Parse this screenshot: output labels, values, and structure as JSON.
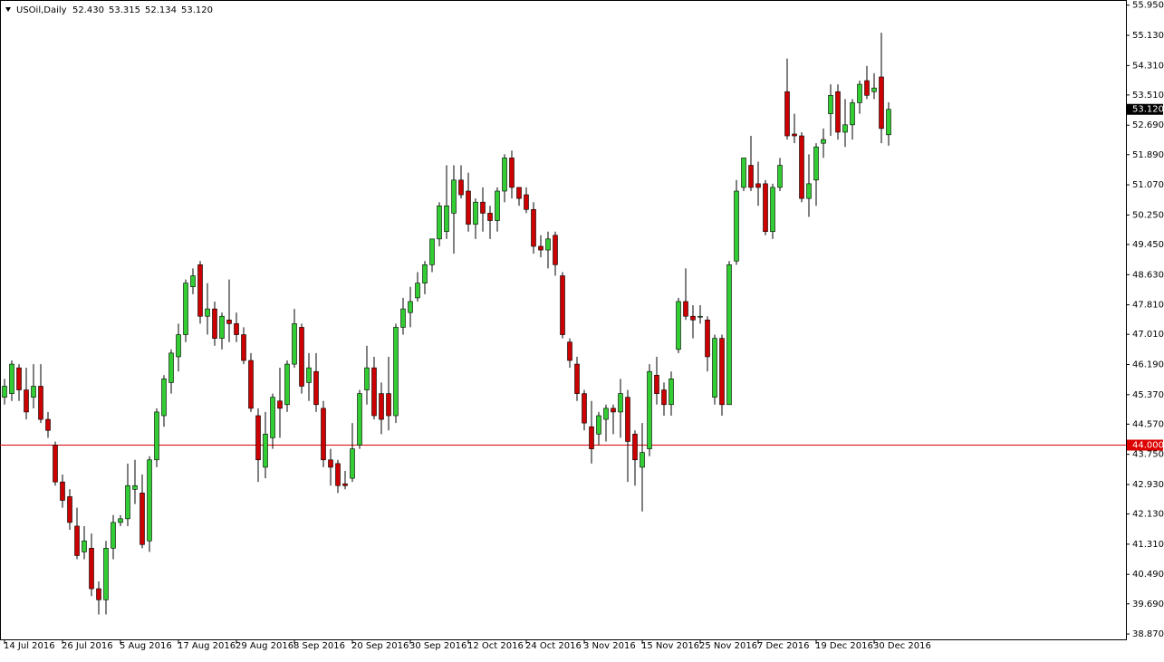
{
  "chart_data": {
    "type": "candlestick",
    "symbol": "USOil,Daily",
    "last_ohlc_labels": [
      "52.430",
      "53.315",
      "52.134",
      "53.120"
    ],
    "categories": [
      "14 Jul 2016",
      null,
      null,
      null,
      null,
      null,
      null,
      null,
      "26 Jul 2016",
      null,
      null,
      null,
      null,
      null,
      null,
      null,
      "5 Aug 2016",
      null,
      null,
      null,
      null,
      null,
      null,
      null,
      "17 Aug 2016",
      null,
      null,
      null,
      null,
      null,
      null,
      null,
      "29 Aug 2016",
      null,
      null,
      null,
      null,
      null,
      null,
      null,
      "8 Sep 2016",
      null,
      null,
      null,
      null,
      null,
      null,
      null,
      "20 Sep 2016",
      null,
      null,
      null,
      null,
      null,
      null,
      null,
      "30 Sep 2016",
      null,
      null,
      null,
      null,
      null,
      null,
      null,
      "12 Oct 2016",
      null,
      null,
      null,
      null,
      null,
      null,
      null,
      "24 Oct 2016",
      null,
      null,
      null,
      null,
      null,
      null,
      null,
      "3 Nov 2016",
      null,
      null,
      null,
      null,
      null,
      null,
      null,
      "15 Nov 2016",
      null,
      null,
      null,
      null,
      null,
      null,
      null,
      "25 Nov 2016",
      null,
      null,
      null,
      null,
      null,
      null,
      null,
      "7 Dec 2016",
      null,
      null,
      null,
      null,
      null,
      null,
      null,
      "19 Dec 2016",
      null,
      null,
      null,
      null,
      null,
      null,
      null,
      "30 Dec 2016",
      null,
      null
    ],
    "open": [
      45.3,
      45.4,
      46.1,
      45.5,
      45.3,
      45.6,
      44.7,
      44.0,
      43.0,
      42.6,
      41.8,
      41.1,
      41.2,
      40.1,
      39.8,
      41.2,
      41.9,
      42.0,
      42.8,
      42.7,
      41.4,
      43.6,
      44.8,
      45.7,
      46.4,
      47.0,
      48.3,
      48.9,
      47.5,
      47.7,
      46.9,
      47.4,
      47.3,
      47.0,
      46.3,
      44.8,
      43.4,
      44.2,
      45.2,
      45.1,
      46.2,
      47.2,
      45.7,
      46.0,
      45.0,
      43.6,
      43.5,
      42.95,
      43.1,
      44.0,
      45.5,
      46.1,
      45.4,
      45.4,
      44.8,
      47.2,
      47.6,
      48.0,
      48.4,
      48.9,
      49.6,
      49.8,
      50.3,
      51.2,
      50.9,
      50.0,
      50.6,
      50.3,
      50.1,
      50.9,
      51.8,
      51.0,
      50.8,
      50.4,
      49.4,
      49.3,
      49.7,
      48.6,
      46.8,
      46.2,
      45.4,
      44.5,
      44.3,
      44.7,
      45.0,
      44.9,
      45.3,
      44.3,
      43.4,
      43.9,
      45.9,
      45.5,
      45.1,
      46.6,
      47.9,
      47.5,
      47.5,
      47.4,
      45.3,
      46.9,
      45.1,
      49.0,
      51.0,
      51.6,
      51.1,
      51.1,
      49.8,
      51.0,
      53.6,
      52.45,
      52.4,
      50.7,
      51.2,
      52.2,
      53.0,
      53.6,
      52.5,
      52.7,
      53.3,
      53.9,
      53.6,
      54.0,
      52.43
    ],
    "high": [
      45.8,
      46.3,
      46.2,
      46.1,
      46.2,
      46.2,
      44.9,
      44.1,
      43.2,
      42.8,
      42.3,
      41.8,
      41.6,
      40.3,
      41.4,
      42.1,
      42.1,
      43.5,
      43.6,
      43.2,
      43.7,
      45.0,
      45.9,
      46.6,
      47.3,
      48.5,
      48.8,
      49.0,
      48.4,
      47.9,
      47.6,
      48.5,
      47.6,
      47.2,
      46.5,
      45.0,
      44.9,
      45.4,
      46.1,
      46.3,
      47.7,
      47.3,
      46.5,
      46.5,
      45.2,
      43.9,
      43.6,
      43.3,
      44.6,
      45.5,
      46.7,
      46.4,
      45.7,
      46.4,
      47.3,
      48.0,
      48.3,
      48.7,
      49.0,
      49.6,
      50.6,
      51.6,
      51.6,
      51.6,
      51.4,
      50.7,
      51.0,
      50.5,
      51.0,
      51.9,
      52.0,
      51.0,
      51.0,
      50.6,
      49.7,
      49.8,
      49.8,
      48.7,
      46.9,
      46.4,
      45.5,
      45.2,
      44.9,
      45.1,
      45.1,
      45.8,
      45.5,
      44.4,
      44.6,
      46.2,
      46.4,
      45.7,
      46.0,
      48.0,
      48.8,
      47.8,
      47.8,
      47.5,
      47.0,
      47.0,
      49.0,
      51.2,
      51.8,
      52.4,
      51.7,
      51.2,
      51.1,
      51.8,
      54.5,
      53.0,
      52.5,
      51.9,
      52.2,
      52.6,
      53.8,
      53.8,
      53.4,
      53.4,
      53.9,
      54.3,
      54.1,
      55.2,
      53.315
    ],
    "low": [
      45.1,
      45.2,
      45.2,
      44.7,
      45.0,
      44.6,
      44.2,
      42.9,
      42.3,
      41.7,
      40.9,
      40.9,
      39.9,
      39.4,
      39.4,
      40.9,
      41.8,
      41.8,
      42.4,
      41.2,
      41.1,
      43.4,
      44.5,
      45.4,
      46.0,
      46.8,
      48.1,
      47.3,
      47.0,
      46.7,
      46.6,
      46.8,
      46.8,
      46.2,
      44.9,
      43.0,
      43.1,
      43.9,
      44.2,
      44.9,
      46.1,
      45.4,
      45.2,
      44.9,
      43.4,
      42.9,
      42.7,
      42.8,
      43.0,
      43.9,
      45.1,
      44.7,
      44.3,
      44.4,
      44.6,
      47.0,
      47.2,
      47.9,
      48.1,
      48.7,
      49.4,
      49.6,
      49.2,
      50.7,
      49.8,
      49.6,
      49.8,
      49.6,
      49.8,
      50.6,
      50.7,
      50.5,
      50.3,
      49.2,
      49.1,
      48.8,
      48.6,
      46.9,
      46.1,
      45.2,
      44.4,
      43.5,
      44.0,
      44.1,
      44.3,
      44.2,
      43.0,
      42.9,
      42.2,
      43.7,
      45.1,
      44.8,
      44.8,
      46.5,
      47.4,
      46.9,
      47.3,
      46.0,
      45.1,
      44.8,
      45.1,
      48.9,
      50.9,
      50.9,
      50.5,
      49.7,
      49.6,
      50.9,
      52.3,
      52.2,
      50.6,
      50.2,
      50.5,
      51.8,
      52.4,
      52.3,
      52.1,
      52.3,
      53.0,
      53.4,
      53.4,
      52.2,
      52.134
    ],
    "close": [
      45.6,
      46.2,
      45.5,
      44.9,
      45.6,
      44.7,
      44.4,
      43.0,
      42.5,
      41.9,
      41.0,
      41.4,
      40.1,
      39.8,
      41.2,
      41.9,
      42.0,
      42.9,
      42.9,
      41.3,
      43.6,
      44.9,
      45.8,
      46.5,
      47.0,
      48.4,
      48.6,
      47.5,
      47.7,
      46.9,
      47.5,
      47.3,
      47.0,
      46.3,
      45.0,
      43.6,
      44.3,
      45.3,
      45.0,
      46.2,
      47.3,
      45.6,
      46.1,
      45.1,
      43.6,
      43.4,
      42.9,
      42.9,
      43.9,
      45.4,
      46.1,
      44.8,
      44.7,
      44.8,
      47.2,
      47.7,
      47.9,
      48.4,
      48.9,
      49.6,
      50.5,
      50.5,
      51.2,
      50.8,
      50.0,
      50.6,
      50.3,
      50.1,
      50.9,
      51.8,
      51.0,
      50.7,
      50.4,
      49.4,
      49.3,
      49.6,
      48.9,
      47.0,
      46.3,
      45.4,
      44.6,
      43.9,
      44.8,
      45.0,
      44.9,
      45.4,
      44.1,
      43.6,
      43.8,
      46.0,
      45.4,
      45.1,
      45.8,
      47.9,
      47.5,
      47.4,
      47.5,
      46.4,
      46.9,
      45.1,
      48.9,
      50.9,
      51.8,
      51.0,
      51.0,
      49.8,
      51.0,
      51.6,
      52.4,
      52.4,
      50.7,
      51.1,
      52.1,
      52.3,
      53.5,
      52.5,
      52.7,
      53.3,
      53.8,
      53.5,
      53.7,
      52.6,
      53.12
    ],
    "up_color": "#32cd32",
    "down_color": "#cc0000",
    "ylim": [
      38.7,
      56.09
    ],
    "yticks": [
      {
        "value": 55.95,
        "label": "55.950"
      },
      {
        "value": 55.13,
        "label": "55.130"
      },
      {
        "value": 54.31,
        "label": "54.310"
      },
      {
        "value": 53.51,
        "label": "53.510"
      },
      {
        "value": 52.69,
        "label": "52.690"
      },
      {
        "value": 51.89,
        "label": "51.890"
      },
      {
        "value": 51.07,
        "label": "51.070"
      },
      {
        "value": 50.25,
        "label": "50.250"
      },
      {
        "value": 49.45,
        "label": "49.450"
      },
      {
        "value": 48.63,
        "label": "48.630"
      },
      {
        "value": 47.81,
        "label": "47.810"
      },
      {
        "value": 47.01,
        "label": "47.010"
      },
      {
        "value": 46.19,
        "label": "46.190"
      },
      {
        "value": 45.37,
        "label": "45.370"
      },
      {
        "value": 44.57,
        "label": "44.570"
      },
      {
        "value": 43.75,
        "label": "43.750"
      },
      {
        "value": 42.93,
        "label": "42.930"
      },
      {
        "value": 42.13,
        "label": "42.130"
      },
      {
        "value": 41.31,
        "label": "41.310"
      },
      {
        "value": 40.49,
        "label": "40.490"
      },
      {
        "value": 39.69,
        "label": "39.690"
      },
      {
        "value": 38.87,
        "label": "38.870"
      }
    ],
    "hline": {
      "value": 44,
      "label": "44.000",
      "color": "#dd0000"
    },
    "current_price": {
      "value": 53.12,
      "label": "53.120"
    }
  }
}
